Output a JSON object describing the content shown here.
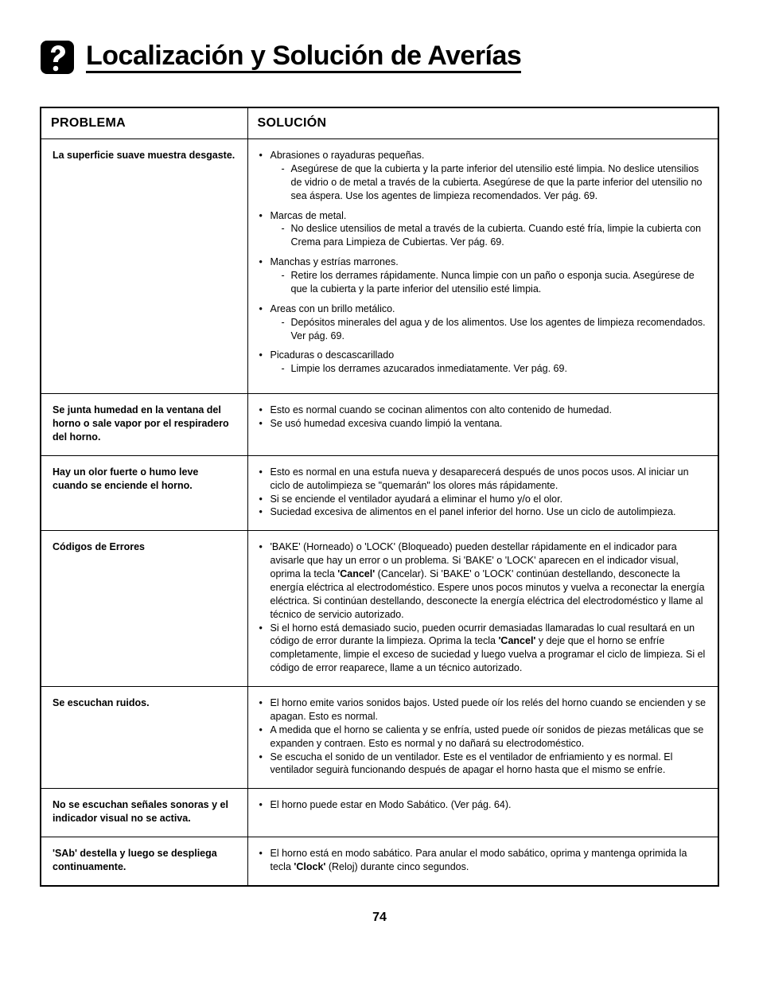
{
  "page": {
    "title": "Localización y Solución de Averías",
    "title_fontsize": 34,
    "number": "74"
  },
  "table": {
    "header_fontsize": 16,
    "body_fontsize": 12.5,
    "headers": {
      "problem": "PROBLEMA",
      "solution": "SOLUCIÓN"
    },
    "rows": [
      {
        "problem": "La superficie suave muestra desgaste.",
        "items": [
          {
            "text": "Abrasiones o rayaduras pequeñas.",
            "sub": [
              "Asegúrese de que la cubierta y la parte inferior del utensilio esté limpia. No deslice utensilios de vidrio o de metal a través de la cubierta. Asegúrese de que la parte inferior del utensilio no sea áspera. Use los agentes de limpieza recomendados. Ver pág. 69."
            ]
          },
          {
            "text": "Marcas de metal.",
            "sub": [
              "No deslice utensilios de metal a través de la cubierta. Cuando esté fría, limpie la cubierta con Crema para Limpieza de Cubiertas. Ver pág. 69."
            ]
          },
          {
            "text": "Manchas y estrías marrones.",
            "sub": [
              "Retire los derrames rápidamente. Nunca limpie con un paño o esponja sucia. Asegúrese de que la cubierta y la parte inferior del utensilio esté limpia."
            ]
          },
          {
            "text": "Areas con un brillo metálico.",
            "sub": [
              "Depósitos minerales del agua y de los alimentos. Use los agentes de limpieza recomendados. Ver pág. 69."
            ]
          },
          {
            "text": "Picaduras o descascarillado",
            "sub": [
              "Limpie los derrames azucarados inmediatamente. Ver pág. 69."
            ]
          }
        ]
      },
      {
        "problem": "Se junta humedad en la ventana del horno o sale vapor por el respiradero del horno.",
        "tight": true,
        "items": [
          {
            "text": "Esto es normal cuando se cocinan alimentos con alto contenido de humedad."
          },
          {
            "text": "Se usó humedad excesiva cuando limpió la ventana."
          }
        ]
      },
      {
        "problem": "Hay un olor fuerte o humo leve cuando se enciende el horno.",
        "tight": true,
        "items": [
          {
            "text": "Esto es normal en una estufa nueva y desaparecerá después de unos pocos usos. Al iniciar un ciclo de autolimpieza se \"quemarán\" los olores más rápidamente."
          },
          {
            "text": "Si se enciende el ventilador ayudará a eliminar el humo y/o el olor."
          },
          {
            "text": "Suciedad excesiva de alimentos en el panel inferior del horno.  Use un ciclo de autolimpieza."
          }
        ]
      },
      {
        "problem": "Códigos de Errores",
        "tight": true,
        "items": [
          {
            "segments": [
              {
                "t": "'BAKE' (Horneado) o 'LOCK' (Bloqueado) pueden destellar rápidamente en el indicador para avisarle que hay un error o un problema.  Si 'BAKE' o 'LOCK' aparecen en el indicador visual, oprima la tecla "
              },
              {
                "t": "'Cancel'",
                "bold": true
              },
              {
                "t": " (Cancelar).  Si 'BAKE' o 'LOCK' continúan destellando, desconecte la energía eléctrica al electrodoméstico. Espere unos pocos minutos y vuelva a reconectar la energía eléctrica. Si continúan destellando, desconecte la energía eléctrica del electrodoméstico y llame al técnico de servicio autorizado."
              }
            ]
          },
          {
            "segments": [
              {
                "t": "Si el horno está demasiado sucio, pueden ocurrir demasiadas llamaradas lo cual resultará en un código de error durante la limpieza.  Oprima la tecla "
              },
              {
                "t": "'Cancel'",
                "bold": true
              },
              {
                "t": " y deje que el horno se enfríe completamente, limpie el exceso de suciedad y luego vuelva a programar el ciclo de limpieza. Si el código de error reaparece, llame a un técnico autorizado."
              }
            ]
          }
        ]
      },
      {
        "problem": "Se escuchan ruidos.",
        "tight": true,
        "items": [
          {
            "text": "El horno emite varios sonidos bajos.  Usted puede oír los relés del horno cuando se encienden y se apagan. Esto es normal."
          },
          {
            "text": "A medida que el horno se calienta y se enfría, usted puede oír sonidos de piezas metálicas que se expanden y contraen.  Esto es normal y no dañará su electrodoméstico."
          },
          {
            "text": "Se escucha el sonido de un ventilador. Este es el ventilador de enfriamiento y es normal. El ventilador seguirà funcionando después de apagar el horno hasta que el mismo se enfríe."
          }
        ]
      },
      {
        "problem": "No se escuchan señales sonoras y el indicador visual no se activa.",
        "tight": true,
        "items": [
          {
            "text": "El horno puede estar en Modo Sabático.  (Ver pág. 64)."
          }
        ]
      },
      {
        "problem": "'SAb' destella y luego se despliega continuamente.",
        "tight": true,
        "items": [
          {
            "segments": [
              {
                "t": "El horno está en modo sabático. Para anular el modo sabático, oprima y mantenga oprimida la tecla "
              },
              {
                "t": "'Clock'",
                "bold": true
              },
              {
                "t": " (Reloj) durante cinco segundos."
              }
            ]
          }
        ]
      }
    ]
  }
}
